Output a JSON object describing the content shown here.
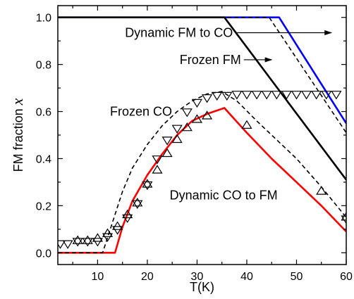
{
  "chart_data": {
    "type": "line",
    "xlabel": "T(K)",
    "ylabel": "FM fraction",
    "ylabel_variable": "x",
    "xlim": [
      2,
      60
    ],
    "ylim": [
      -0.05,
      1.05
    ],
    "xticks": [
      10,
      20,
      30,
      40,
      50,
      60
    ],
    "yticks": [
      0.0,
      0.2,
      0.4,
      0.6,
      0.8,
      1.0
    ],
    "xtick_labels": [
      "10",
      "20",
      "30",
      "40",
      "50",
      "60"
    ],
    "ytick_labels": [
      "0.0",
      "0.2",
      "0.4",
      "0.6",
      "0.8",
      "1.0"
    ],
    "grid": false,
    "series": [
      {
        "style": "solid",
        "color": "#0000ff",
        "x": [
          2,
          46.5,
          60
        ],
        "y": [
          1.0,
          1.0,
          0.55
        ]
      },
      {
        "style": "solid",
        "color": "#000000",
        "x": [
          2,
          35.5,
          60
        ],
        "y": [
          1.0,
          1.0,
          0.31
        ]
      },
      {
        "style": "dashed",
        "color": "#000000",
        "x": [
          2,
          44.5,
          60
        ],
        "y": [
          1.0,
          1.0,
          0.51
        ]
      },
      {
        "style": "solid",
        "color": "#ff0000",
        "x": [
          2,
          13.5,
          15,
          17,
          20,
          23,
          26,
          29,
          32,
          35.5,
          40,
          45,
          50,
          55,
          60
        ],
        "y": [
          0.0,
          0.0,
          0.11,
          0.22,
          0.33,
          0.42,
          0.5,
          0.56,
          0.59,
          0.615,
          0.51,
          0.4,
          0.3,
          0.2,
          0.09
        ]
      },
      {
        "style": "dashed",
        "color": "#000000",
        "x": [
          2,
          11,
          13,
          15,
          17,
          20,
          23,
          26,
          29,
          32,
          35,
          38,
          42,
          46,
          50,
          55,
          60
        ],
        "y": [
          0.0,
          0.0,
          0.13,
          0.26,
          0.36,
          0.46,
          0.54,
          0.6,
          0.645,
          0.675,
          0.685,
          0.645,
          0.56,
          0.48,
          0.4,
          0.28,
          0.15
        ]
      },
      {
        "marker": "triangle-down",
        "color": "#000000",
        "x": [
          2.5,
          4,
          6,
          8,
          10,
          12,
          14,
          16,
          18,
          20,
          22,
          24,
          26,
          28,
          30,
          32,
          34,
          36,
          38,
          40,
          42,
          44,
          46,
          48,
          50,
          52,
          54,
          56,
          58,
          60
        ],
        "y": [
          0.04,
          0.04,
          0.05,
          0.05,
          0.05,
          0.07,
          0.1,
          0.15,
          0.21,
          0.29,
          0.4,
          0.48,
          0.53,
          0.6,
          0.64,
          0.66,
          0.67,
          0.67,
          0.675,
          0.675,
          0.675,
          0.675,
          0.675,
          0.675,
          0.675,
          0.675,
          0.675,
          0.675,
          0.675,
          0.145
        ]
      },
      {
        "marker": "triangle-up",
        "color": "#000000",
        "x": [
          6,
          8,
          10,
          12,
          14,
          16,
          18,
          20,
          22,
          24,
          26,
          28,
          30,
          32,
          40,
          55,
          60
        ],
        "y": [
          0.05,
          0.05,
          0.06,
          0.08,
          0.11,
          0.16,
          0.21,
          0.29,
          0.35,
          0.42,
          0.48,
          0.53,
          0.565,
          0.58,
          0.54,
          0.26,
          0.15
        ]
      }
    ],
    "annotations": [
      {
        "text": "Dynamic FM to CO",
        "x": 15.5,
        "y": 0.935,
        "anchor": "start",
        "arrow_to": [
          57,
          0.935
        ]
      },
      {
        "text": "Frozen FM",
        "x": 26.5,
        "y": 0.82,
        "anchor": "start",
        "arrow_to": [
          45,
          0.82
        ]
      },
      {
        "text": "Frozen CO",
        "x": 12.5,
        "y": 0.6,
        "anchor": "start"
      },
      {
        "text": "Dynamic CO to FM",
        "x": 24.5,
        "y": 0.245,
        "anchor": "start"
      }
    ]
  }
}
